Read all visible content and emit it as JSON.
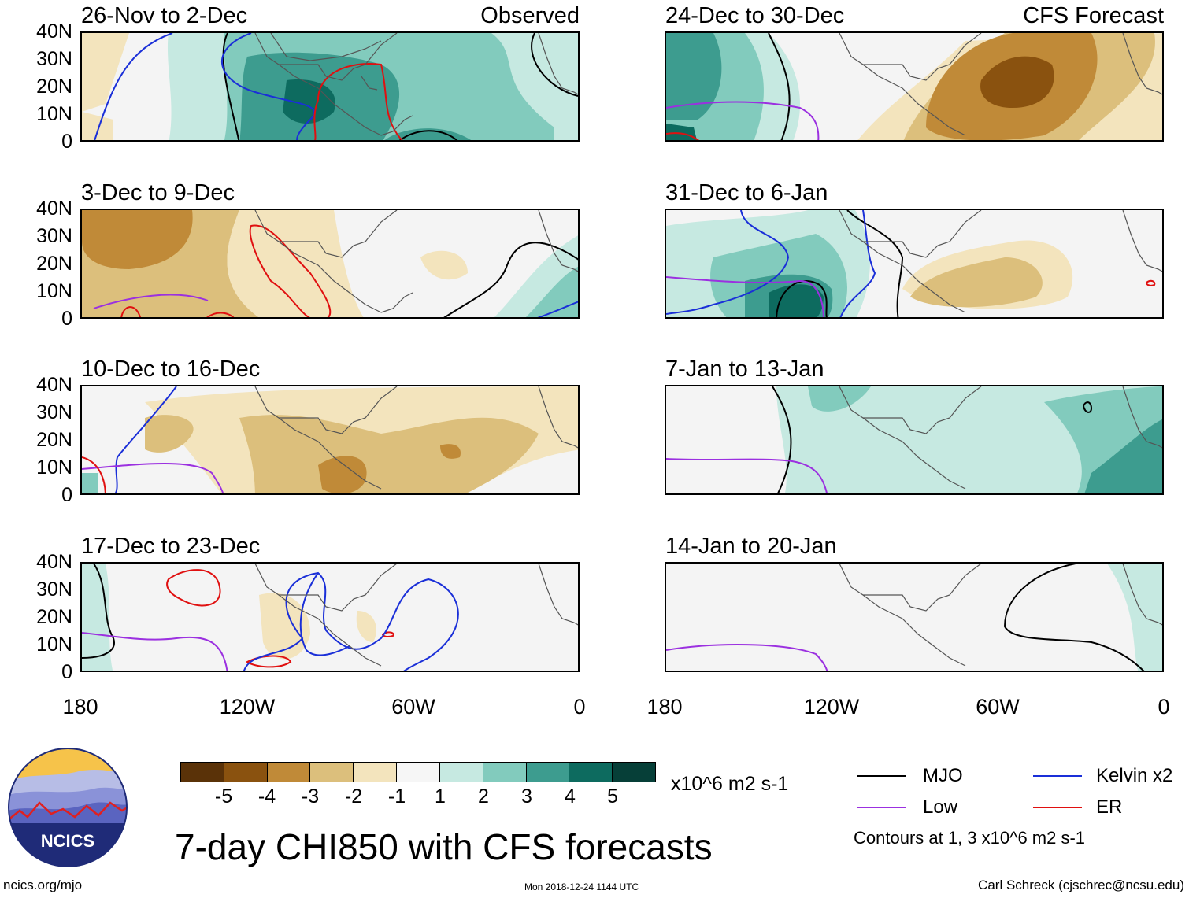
{
  "figure_title": "7-day CHI850 with CFS forecasts",
  "observed_label": "Observed",
  "forecast_label": "CFS Forecast",
  "y_ticks": [
    "40N",
    "30N",
    "20N",
    "10N",
    "0"
  ],
  "x_ticks": [
    "180",
    "120W",
    "60W",
    "0"
  ],
  "colorbar": {
    "units": "x10^6 m2 s-1",
    "labels": [
      "-5",
      "-4",
      "-3",
      "-2",
      "-1",
      "1",
      "2",
      "3",
      "4",
      "5"
    ],
    "colors": [
      "#5a3208",
      "#8a520f",
      "#c08a38",
      "#dcbf7c",
      "#f3e4bd",
      "#f6f6f6",
      "#c6e9e1",
      "#82cbbd",
      "#3d9c8f",
      "#0d6b5f",
      "#063f38"
    ]
  },
  "legend": {
    "items": [
      {
        "label": "MJO",
        "color": "#000000"
      },
      {
        "label": "Kelvin x2",
        "color": "#1a2fd8"
      },
      {
        "label": "Low",
        "color": "#9b30e0"
      },
      {
        "label": "ER",
        "color": "#e01010"
      }
    ],
    "note": "Contours at 1, 3 x10^6 m2 s-1"
  },
  "logo_text": "NCICS",
  "site": "ncics.org/mjo",
  "timestamp": "Mon 2018-12-24 1144 UTC",
  "credit": "Carl Schreck (cjschrec@ncsu.edu)",
  "panels": [
    {
      "id": "p1",
      "title": "26-Nov to 2-Dec",
      "column": "observed"
    },
    {
      "id": "p2",
      "title": "3-Dec to 9-Dec",
      "column": "observed"
    },
    {
      "id": "p3",
      "title": "10-Dec to 16-Dec",
      "column": "observed"
    },
    {
      "id": "p4",
      "title": "17-Dec to 23-Dec",
      "column": "observed"
    },
    {
      "id": "p5",
      "title": "24-Dec to 30-Dec",
      "column": "forecast"
    },
    {
      "id": "p6",
      "title": "31-Dec to 6-Jan",
      "column": "forecast"
    },
    {
      "id": "p7",
      "title": "7-Jan to 13-Jan",
      "column": "forecast"
    },
    {
      "id": "p8",
      "title": "14-Jan to 20-Jan",
      "column": "forecast"
    }
  ]
}
